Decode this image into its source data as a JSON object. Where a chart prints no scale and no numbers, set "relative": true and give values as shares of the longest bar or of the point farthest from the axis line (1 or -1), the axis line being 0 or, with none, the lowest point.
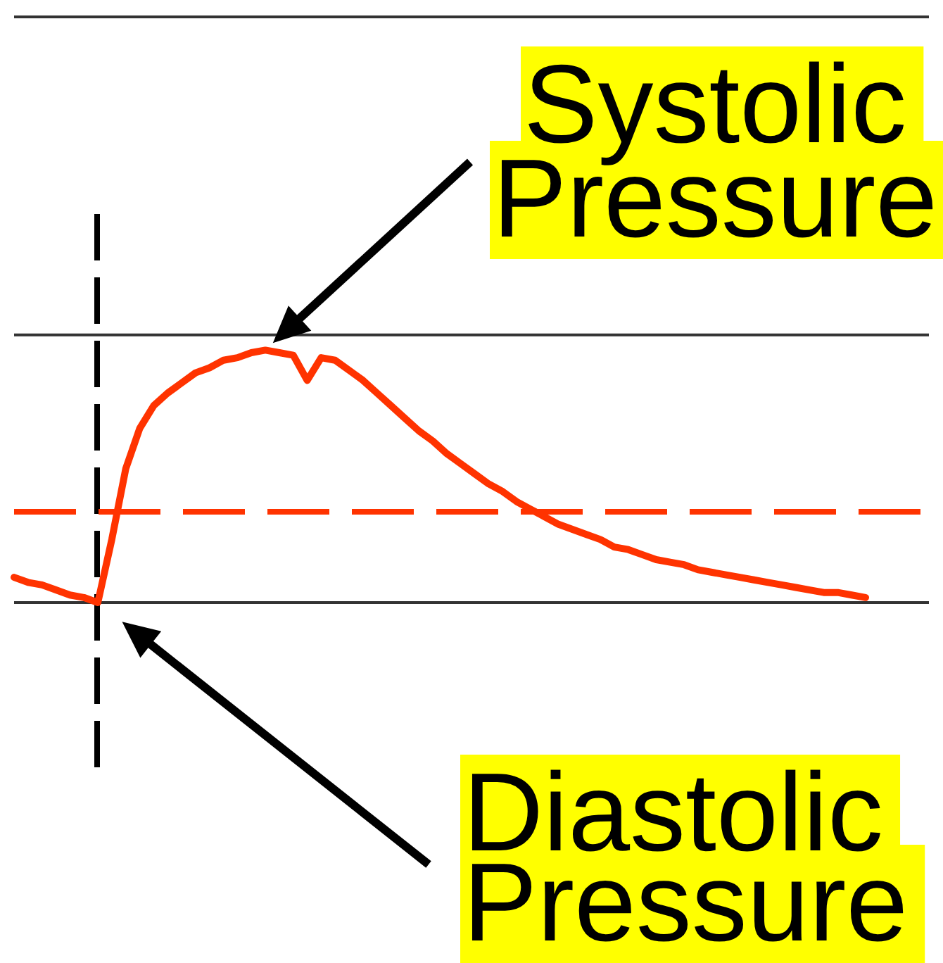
{
  "chart_data": {
    "type": "line",
    "relative": true,
    "color": "#ff3300",
    "categories": [
      null,
      null,
      null,
      null,
      null,
      null,
      null,
      null,
      null,
      null,
      null,
      null,
      null,
      null,
      null,
      null,
      null,
      null,
      null,
      null,
      null,
      null,
      null,
      null,
      null,
      null,
      null,
      null,
      null,
      null,
      null,
      null,
      null,
      null,
      null,
      null,
      null,
      null,
      null,
      null,
      null,
      null,
      null,
      null,
      null,
      null,
      null,
      null,
      null,
      null,
      null,
      null,
      null,
      null,
      null,
      null,
      null,
      null,
      null,
      null,
      null,
      null
    ],
    "values": [
      0.1,
      0.08,
      0.07,
      0.05,
      0.03,
      0.02,
      0,
      0.25,
      0.53,
      0.69,
      0.78,
      0.83,
      0.87,
      0.91,
      0.93,
      0.96,
      0.97,
      0.99,
      1,
      0.99,
      0.98,
      0.88,
      0.97,
      0.96,
      0.92,
      0.88,
      0.83,
      0.78,
      0.73,
      0.68,
      0.64,
      0.59,
      0.55,
      0.51,
      0.47,
      0.44,
      0.4,
      0.37,
      0.34,
      0.31,
      0.29,
      0.27,
      0.25,
      0.22,
      0.21,
      0.19,
      0.17,
      0.16,
      0.15,
      0.13,
      0.12,
      0.11,
      0.1,
      0.09,
      0.08,
      0.07,
      0.06,
      0.05,
      0.04,
      0.04,
      0.03,
      0.02
    ],
    "ref_lines": [
      {
        "axis": "y",
        "value": 0,
        "color": "#333333",
        "line_style": "solid"
      },
      {
        "axis": "y",
        "value": 1.06,
        "color": "#333333",
        "line_style": "solid"
      },
      {
        "axis": "y",
        "value": 2.32,
        "color": "#333333",
        "line_style": "solid"
      },
      {
        "axis": "y",
        "value": 0.36,
        "color": "#ff3300",
        "line_style": "dashed"
      }
    ],
    "annotations": [
      "Systolic\nPressure",
      {
        "text": "Diastolic\nPressure",
        "y": 0
      }
    ]
  }
}
